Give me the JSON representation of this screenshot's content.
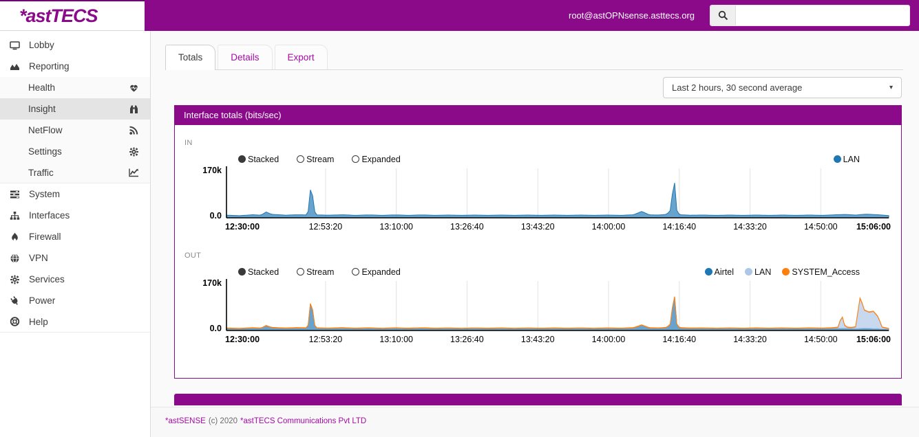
{
  "header": {
    "logo": "*astTECS",
    "user": "root@astOPNsense.asttecs.org",
    "search": {
      "value": "",
      "icon": "search-icon"
    }
  },
  "sidebar": {
    "items": [
      {
        "label": "Lobby",
        "icon": "desktop-icon"
      },
      {
        "label": "Reporting",
        "icon": "area-chart-icon",
        "expanded": true
      },
      {
        "label": "Health",
        "icon": "heartbeat-icon",
        "sub": true
      },
      {
        "label": "Insight",
        "icon": "binoculars-icon",
        "sub": true,
        "active": true
      },
      {
        "label": "NetFlow",
        "icon": "rss-icon",
        "sub": true
      },
      {
        "label": "Settings",
        "icon": "gear-icon",
        "sub": true
      },
      {
        "label": "Traffic",
        "icon": "line-chart-icon",
        "sub": true
      },
      {
        "label": "System",
        "icon": "tasks-icon"
      },
      {
        "label": "Interfaces",
        "icon": "sitemap-icon"
      },
      {
        "label": "Firewall",
        "icon": "fire-icon"
      },
      {
        "label": "VPN",
        "icon": "globe-icon"
      },
      {
        "label": "Services",
        "icon": "gear-icon"
      },
      {
        "label": "Power",
        "icon": "plug-icon"
      },
      {
        "label": "Help",
        "icon": "life-ring-icon"
      }
    ]
  },
  "tabs": [
    {
      "label": "Totals",
      "active": true
    },
    {
      "label": "Details",
      "active": false
    },
    {
      "label": "Export",
      "active": false
    }
  ],
  "toolbar": {
    "period_selector": "Last 2 hours, 30 second average",
    "caret_icon": "chevron-down-icon"
  },
  "panel": {
    "title": "Interface totals (bits/sec)"
  },
  "footer": {
    "brand": "*astSENSE",
    "copyright": "(c) 2020",
    "company": "*astTECS Communications Pvt LTD"
  },
  "accent_colors": {
    "brand_purple": "#8a0a8a",
    "link_purple": "#a50ba5"
  },
  "chart_data": [
    {
      "type": "area",
      "section_label": "IN",
      "controls": [
        "Stacked",
        "Stream",
        "Expanded"
      ],
      "selected_control": "Stacked",
      "ylim": [
        0,
        170000
      ],
      "y_tick_labels": {
        "max": "170k",
        "min": "0.0"
      },
      "x_ticks": [
        {
          "label": "12:30:00",
          "f": 0,
          "bold": true
        },
        {
          "label": "12:53:20",
          "f": 0.1496
        },
        {
          "label": "13:10:00",
          "f": 0.2564
        },
        {
          "label": "13:26:40",
          "f": 0.3632
        },
        {
          "label": "13:43:20",
          "f": 0.4701
        },
        {
          "label": "14:00:00",
          "f": 0.5769
        },
        {
          "label": "14:16:40",
          "f": 0.6838
        },
        {
          "label": "14:33:20",
          "f": 0.7906
        },
        {
          "label": "14:50:00",
          "f": 0.8974
        },
        {
          "label": "15:06:00",
          "f": 1,
          "bold": true
        }
      ],
      "series": [
        {
          "name": "LAN",
          "color": "#1f77b4",
          "points": [
            [
              0,
              9000
            ],
            [
              0.02,
              7500
            ],
            [
              0.04,
              10500
            ],
            [
              0.052,
              9000
            ],
            [
              0.06,
              20000
            ],
            [
              0.068,
              12000
            ],
            [
              0.09,
              9000
            ],
            [
              0.105,
              10500
            ],
            [
              0.12,
              10000
            ],
            [
              0.1245,
              25000
            ],
            [
              0.128,
              140000
            ],
            [
              0.1315,
              28000
            ],
            [
              0.136,
              10000
            ],
            [
              0.155,
              9000
            ],
            [
              0.175,
              10500
            ],
            [
              0.195,
              8500
            ],
            [
              0.215,
              10000
            ],
            [
              0.235,
              8500
            ],
            [
              0.255,
              10000
            ],
            [
              0.275,
              8500
            ],
            [
              0.295,
              10000
            ],
            [
              0.315,
              8500
            ],
            [
              0.335,
              9500
            ],
            [
              0.355,
              8500
            ],
            [
              0.375,
              9500
            ],
            [
              0.395,
              8500
            ],
            [
              0.415,
              9500
            ],
            [
              0.435,
              8500
            ],
            [
              0.455,
              9500
            ],
            [
              0.475,
              8500
            ],
            [
              0.495,
              9500
            ],
            [
              0.515,
              8500
            ],
            [
              0.535,
              9500
            ],
            [
              0.555,
              8500
            ],
            [
              0.575,
              9500
            ],
            [
              0.595,
              8500
            ],
            [
              0.615,
              10500
            ],
            [
              0.627,
              22000
            ],
            [
              0.638,
              10500
            ],
            [
              0.652,
              9500
            ],
            [
              0.665,
              12000
            ],
            [
              0.672,
              30000
            ],
            [
              0.6755,
              165000
            ],
            [
              0.679,
              30000
            ],
            [
              0.684,
              10500
            ],
            [
              0.7,
              9000
            ],
            [
              0.72,
              9500
            ],
            [
              0.74,
              8500
            ],
            [
              0.76,
              9500
            ],
            [
              0.78,
              8500
            ],
            [
              0.8,
              9500
            ],
            [
              0.82,
              8500
            ],
            [
              0.84,
              9500
            ],
            [
              0.86,
              8500
            ],
            [
              0.88,
              9500
            ],
            [
              0.9,
              8500
            ],
            [
              0.92,
              10500
            ],
            [
              0.935,
              11500
            ],
            [
              0.95,
              9500
            ],
            [
              0.965,
              12500
            ],
            [
              0.98,
              11000
            ],
            [
              0.99,
              9500
            ],
            [
              1,
              7500
            ]
          ]
        }
      ]
    },
    {
      "type": "area",
      "section_label": "OUT",
      "controls": [
        "Stacked",
        "Stream",
        "Expanded"
      ],
      "selected_control": "Stacked",
      "ylim": [
        0,
        170000
      ],
      "y_tick_labels": {
        "max": "170k",
        "min": "0.0"
      },
      "x_ticks": [
        {
          "label": "12:30:00",
          "f": 0,
          "bold": true
        },
        {
          "label": "12:53:20",
          "f": 0.1496
        },
        {
          "label": "13:10:00",
          "f": 0.2564
        },
        {
          "label": "13:26:40",
          "f": 0.3632
        },
        {
          "label": "13:43:20",
          "f": 0.4701
        },
        {
          "label": "14:00:00",
          "f": 0.5769
        },
        {
          "label": "14:16:40",
          "f": 0.6838
        },
        {
          "label": "14:33:20",
          "f": 0.7906
        },
        {
          "label": "14:50:00",
          "f": 0.8974
        },
        {
          "label": "15:06:00",
          "f": 1,
          "bold": true
        }
      ],
      "series": [
        {
          "name": "Airtel",
          "color": "#1f77b4",
          "points": [
            [
              0,
              7000
            ],
            [
              0.02,
              6000
            ],
            [
              0.04,
              8500
            ],
            [
              0.052,
              7000
            ],
            [
              0.06,
              16000
            ],
            [
              0.068,
              9500
            ],
            [
              0.09,
              7000
            ],
            [
              0.105,
              8500
            ],
            [
              0.12,
              8000
            ],
            [
              0.1245,
              20000
            ],
            [
              0.128,
              135000
            ],
            [
              0.1315,
              22000
            ],
            [
              0.136,
              8000
            ],
            [
              0.155,
              7000
            ],
            [
              0.175,
              8500
            ],
            [
              0.195,
              6500
            ],
            [
              0.215,
              8000
            ],
            [
              0.235,
              6500
            ],
            [
              0.255,
              8000
            ],
            [
              0.275,
              6500
            ],
            [
              0.295,
              8000
            ],
            [
              0.315,
              6500
            ],
            [
              0.335,
              7500
            ],
            [
              0.355,
              6500
            ],
            [
              0.375,
              7500
            ],
            [
              0.395,
              6500
            ],
            [
              0.415,
              7500
            ],
            [
              0.435,
              6500
            ],
            [
              0.455,
              7500
            ],
            [
              0.475,
              6500
            ],
            [
              0.495,
              7500
            ],
            [
              0.515,
              6500
            ],
            [
              0.535,
              7500
            ],
            [
              0.555,
              6500
            ],
            [
              0.575,
              7500
            ],
            [
              0.595,
              6500
            ],
            [
              0.615,
              8500
            ],
            [
              0.627,
              18000
            ],
            [
              0.638,
              8500
            ],
            [
              0.652,
              7500
            ],
            [
              0.665,
              9500
            ],
            [
              0.672,
              25000
            ],
            [
              0.6755,
              160000
            ],
            [
              0.679,
              25000
            ],
            [
              0.684,
              8500
            ],
            [
              0.7,
              7000
            ],
            [
              0.72,
              7500
            ],
            [
              0.74,
              6500
            ],
            [
              0.76,
              7500
            ],
            [
              0.78,
              6500
            ],
            [
              0.8,
              7500
            ],
            [
              0.82,
              6500
            ],
            [
              0.84,
              7500
            ],
            [
              0.86,
              6500
            ],
            [
              0.88,
              7500
            ],
            [
              0.9,
              6500
            ],
            [
              0.92,
              8000
            ],
            [
              0.935,
              8500
            ],
            [
              0.95,
              7000
            ],
            [
              0.965,
              8000
            ],
            [
              0.98,
              7000
            ],
            [
              0.99,
              6000
            ],
            [
              1,
              4500
            ]
          ]
        },
        {
          "name": "LAN",
          "color": "#aec7e8",
          "points": [
            [
              0,
              300
            ],
            [
              0.1,
              300
            ],
            [
              0.2,
              300
            ],
            [
              0.3,
              300
            ],
            [
              0.4,
              300
            ],
            [
              0.5,
              300
            ],
            [
              0.6,
              300
            ],
            [
              0.7,
              350
            ],
            [
              0.8,
              400
            ],
            [
              0.85,
              450
            ],
            [
              0.9,
              600
            ],
            [
              0.915,
              900
            ],
            [
              0.924,
              2500
            ],
            [
              0.929,
              45000
            ],
            [
              0.934,
              4000
            ],
            [
              0.942,
              1500
            ],
            [
              0.95,
              5000
            ],
            [
              0.957,
              108000
            ],
            [
              0.963,
              62000
            ],
            [
              0.97,
              55000
            ],
            [
              0.977,
              58000
            ],
            [
              0.984,
              40000
            ],
            [
              0.99,
              5000
            ],
            [
              1,
              1500
            ]
          ]
        },
        {
          "name": "SYSTEM_Access",
          "color": "#ff7f0e",
          "points": [
            [
              0,
              1400
            ],
            [
              0.05,
              1100
            ],
            [
              0.1,
              1500
            ],
            [
              0.15,
              1100
            ],
            [
              0.2,
              1400
            ],
            [
              0.25,
              1100
            ],
            [
              0.3,
              1400
            ],
            [
              0.35,
              1100
            ],
            [
              0.4,
              1400
            ],
            [
              0.45,
              1100
            ],
            [
              0.5,
              1400
            ],
            [
              0.55,
              1200
            ],
            [
              0.6,
              1400
            ],
            [
              0.65,
              1200
            ],
            [
              0.7,
              1400
            ],
            [
              0.75,
              1200
            ],
            [
              0.8,
              1400
            ],
            [
              0.85,
              1200
            ],
            [
              0.9,
              1400
            ],
            [
              0.95,
              1300
            ],
            [
              1,
              1200
            ]
          ]
        }
      ]
    }
  ]
}
